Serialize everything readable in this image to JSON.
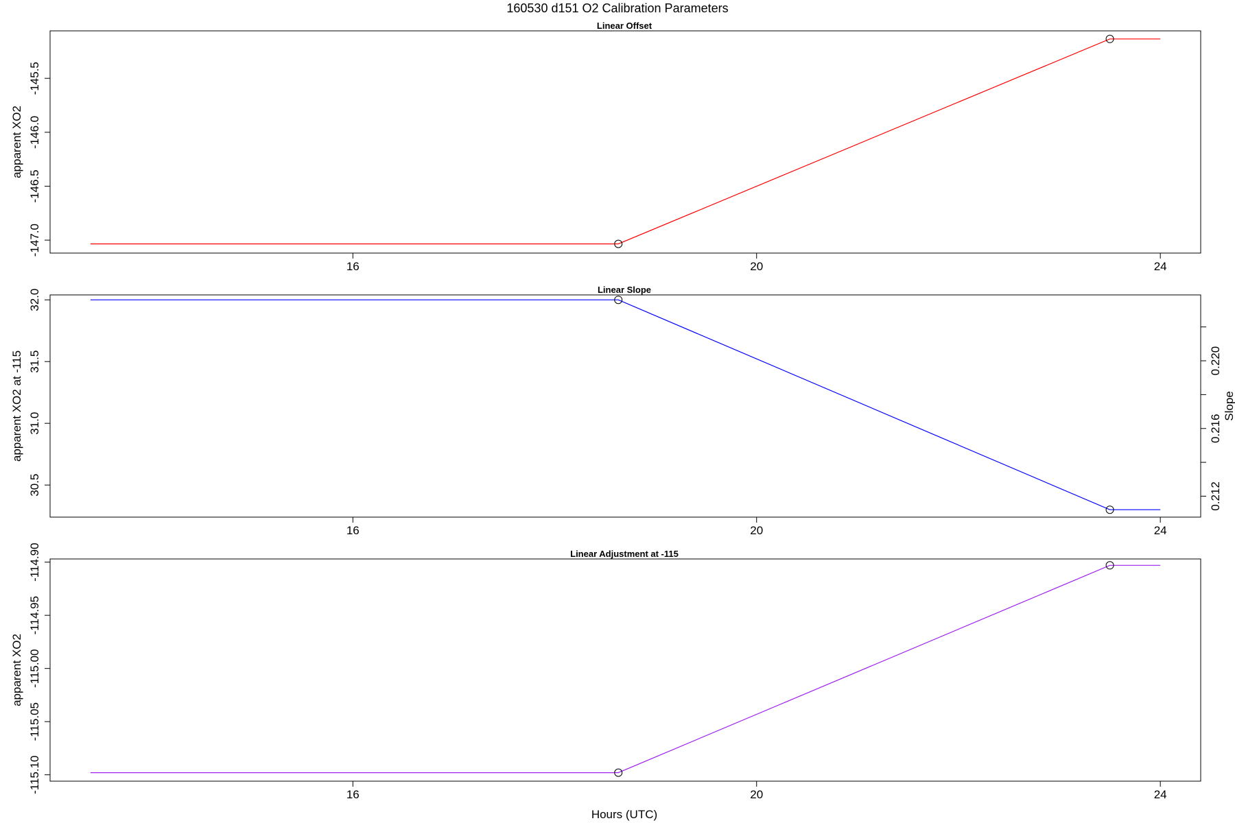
{
  "page_title": "160530   d151   O2 Calibration Parameters",
  "x_axis_title": "Hours (UTC)",
  "chart_data": [
    {
      "type": "line",
      "title": "Linear Offset",
      "xlabel": "",
      "ylabel": "apparent XO2",
      "xlim": [
        13.0,
        24.4
      ],
      "ylim": [
        -147.12,
        -145.06
      ],
      "x_ticks": [
        16,
        20,
        24
      ],
      "y_ticks": [
        -147.0,
        -146.5,
        -146.0,
        -145.5
      ],
      "y_tick_labels": [
        "-147.0",
        "-146.5",
        "-146.0",
        "-145.5"
      ],
      "grid": false,
      "color": "#ff0000",
      "series": [
        {
          "x": [
            13.4,
            18.63,
            23.5,
            24.0
          ],
          "y": [
            -147.035,
            -147.035,
            -145.135,
            -145.135
          ]
        }
      ],
      "markers": [
        {
          "x": 18.63,
          "y": -147.035
        },
        {
          "x": 23.5,
          "y": -145.135
        }
      ]
    },
    {
      "type": "line",
      "title": "Linear Slope",
      "xlabel": "",
      "ylabel": "apparent XO2 at -115",
      "y2label": "Slope",
      "xlim": [
        13.0,
        24.4
      ],
      "ylim": [
        30.24,
        32.04
      ],
      "x_ticks": [
        16,
        20,
        24
      ],
      "y_ticks": [
        30.5,
        31.0,
        31.5,
        32.0
      ],
      "y_tick_labels": [
        "30.5",
        "31.0",
        "31.5",
        "32.0"
      ],
      "y2_ticks": [
        0.212,
        0.214,
        0.216,
        0.218,
        0.22,
        0.222
      ],
      "y2_tick_labels": [
        "0.212",
        "",
        "0.216",
        "",
        "0.220",
        ""
      ],
      "grid": false,
      "color": "#0000ff",
      "series": [
        {
          "x": [
            13.4,
            18.63,
            23.5,
            24.0
          ],
          "y": [
            32.0,
            32.0,
            30.3,
            30.3
          ]
        }
      ],
      "markers": [
        {
          "x": 18.63,
          "y": 32.0
        },
        {
          "x": 23.5,
          "y": 30.3
        }
      ]
    },
    {
      "type": "line",
      "title": "Linear Adjustment at -115",
      "xlabel": "Hours (UTC)",
      "ylabel": "apparent XO2",
      "xlim": [
        13.0,
        24.4
      ],
      "ylim": [
        -115.106,
        -114.897
      ],
      "x_ticks": [
        16,
        20,
        24
      ],
      "y_ticks": [
        -115.1,
        -115.05,
        -115.0,
        -114.95,
        -114.9
      ],
      "y_tick_labels": [
        "-115.10",
        "-115.05",
        "-115.00",
        "-114.95",
        "-114.90"
      ],
      "grid": false,
      "color": "#a020f0",
      "series": [
        {
          "x": [
            13.4,
            18.63,
            23.5,
            24.0
          ],
          "y": [
            -115.098,
            -115.098,
            -114.903,
            -114.903
          ]
        }
      ],
      "markers": [
        {
          "x": 18.63,
          "y": -115.098
        },
        {
          "x": 23.5,
          "y": -114.903
        }
      ]
    }
  ]
}
